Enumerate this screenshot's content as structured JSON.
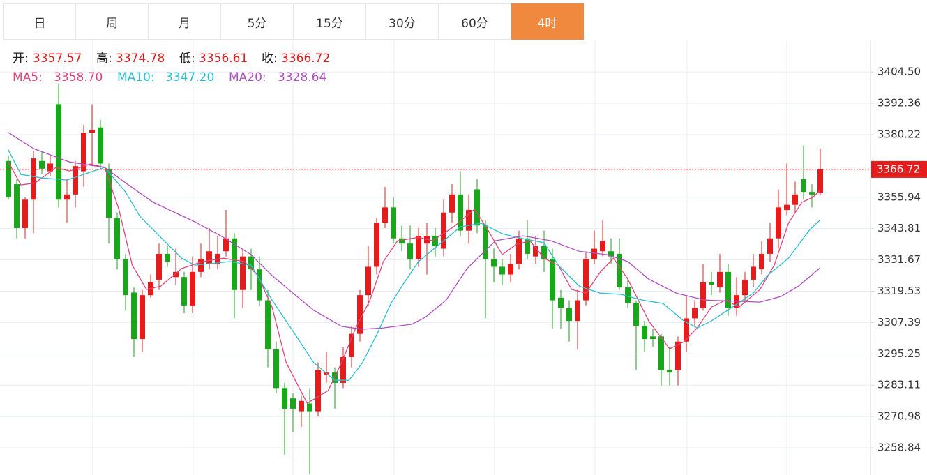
{
  "tabs": [
    "日",
    "周",
    "月",
    "5分",
    "15分",
    "30分",
    "60分",
    "4时"
  ],
  "active_tab": 7,
  "chart_data": {
    "type": "candlestick",
    "ohlc_labels": [
      "开:",
      "高:",
      "低:",
      "收:"
    ],
    "up_color": "#e41c1c",
    "down_color": "#1aa61a",
    "open": [
      3370,
      3361,
      3344,
      3355,
      3370,
      3366,
      3392,
      3355,
      3357,
      3366,
      3381,
      3383,
      3367,
      3348,
      3332,
      3319,
      3301,
      3318,
      3324,
      3334,
      3325,
      3325,
      3314,
      3327,
      3330,
      3330,
      3335,
      3340,
      3320,
      3333,
      3328,
      3316,
      3297,
      3282,
      3278,
      3273,
      3276,
      3273,
      3287,
      3288,
      3284,
      3294,
      3303,
      3318,
      3329,
      3346,
      3352,
      3340,
      3338,
      3332,
      3338,
      3341,
      3336,
      3350,
      3357,
      3343,
      3359,
      3345,
      3332,
      3329,
      3326,
      3330,
      3340,
      3333,
      3337,
      3332,
      3317,
      3313,
      3308,
      3316,
      3332,
      3335,
      3335,
      3334,
      3321,
      3315,
      3306,
      3302,
      3302,
      3289,
      3289,
      3300,
      3309,
      3313,
      3323,
      3321,
      3327,
      3313,
      3318,
      3324,
      3328,
      3334,
      3340,
      3351,
      3353,
      3363,
      3358,
      3357.57
    ],
    "high": [
      3372,
      3363,
      3356,
      3374,
      3374,
      3372,
      3400,
      3363,
      3370,
      3384,
      3392,
      3386,
      3369,
      3350,
      3334,
      3321,
      3320,
      3326,
      3338,
      3337,
      3336,
      3327,
      3333,
      3338,
      3344,
      3341,
      3351,
      3342,
      3336,
      3336,
      3333,
      3320,
      3300,
      3284,
      3280,
      3279,
      3282,
      3292,
      3296,
      3290,
      3298,
      3306,
      3320,
      3337,
      3348,
      3360,
      3356,
      3345,
      3345,
      3344,
      3346,
      3344,
      3355,
      3361,
      3366,
      3357,
      3363,
      3347,
      3336,
      3332,
      3334,
      3343,
      3347,
      3341,
      3343,
      3336,
      3320,
      3316,
      3320,
      3335,
      3343,
      3347,
      3340,
      3340,
      3325,
      3316,
      3308,
      3305,
      3303,
      3298,
      3302,
      3318,
      3316,
      3330,
      3327,
      3334,
      3330,
      3325,
      3327,
      3334,
      3339,
      3346,
      3359,
      3369,
      3362,
      3376,
      3361,
      3374.78
    ],
    "low": [
      3355,
      3340,
      3340,
      3342,
      3365,
      3364,
      3352,
      3346,
      3352,
      3360,
      3368,
      3367,
      3338,
      3328,
      3312,
      3294,
      3296,
      3317,
      3320,
      3329,
      3322,
      3311,
      3311,
      3325,
      3328,
      3328,
      3333,
      3309,
      3313,
      3320,
      3314,
      3290,
      3280,
      3256,
      3265,
      3267,
      3248.5,
      3271,
      3284,
      3274,
      3282,
      3290,
      3300,
      3314,
      3326,
      3344,
      3338,
      3335,
      3328,
      3329,
      3326,
      3333,
      3333,
      3346,
      3341,
      3338,
      3342,
      3309,
      3323,
      3322,
      3323,
      3328,
      3332,
      3330,
      3327,
      3305,
      3305,
      3300,
      3297,
      3314,
      3330,
      3333,
      3330,
      3320,
      3313,
      3289,
      3296,
      3298,
      3283,
      3283,
      3283,
      3296,
      3306,
      3312,
      3318,
      3319,
      3310,
      3310,
      3315,
      3321,
      3326,
      3331,
      3336,
      3349,
      3350,
      3355,
      3352,
      3356.61
    ],
    "close": [
      3356,
      3344,
      3355,
      3371,
      3367,
      3369,
      3355,
      3357,
      3368,
      3381,
      3382,
      3369,
      3348,
      3332,
      3318,
      3301,
      3318,
      3323,
      3334,
      3331,
      3327,
      3314,
      3327,
      3332,
      3335,
      3334,
      3340,
      3320,
      3333,
      3328,
      3316,
      3297,
      3282,
      3274,
      3274,
      3277,
      3273,
      3289,
      3288,
      3284,
      3294,
      3303,
      3318,
      3329,
      3346,
      3352,
      3340,
      3338,
      3332,
      3341,
      3341,
      3337,
      3350,
      3357,
      3343,
      3351,
      3345,
      3332,
      3329,
      3326,
      3330,
      3340,
      3334,
      3337,
      3332,
      3316,
      3313,
      3308,
      3316,
      3332,
      3336,
      3339,
      3333,
      3321,
      3315,
      3306,
      3301,
      3301,
      3289,
      3288,
      3300,
      3309,
      3313,
      3323,
      3322,
      3327,
      3313,
      3318,
      3324,
      3329,
      3334,
      3340,
      3352,
      3353,
      3357,
      3358,
      3357,
      3366.72
    ],
    "series": [
      {
        "name": "MA5:",
        "value_label": "3358.70",
        "color": "#e0457b",
        "x": [
          0,
          1.5,
          3.2,
          5.7,
          7.3,
          9.8,
          11.5,
          13.2,
          14.8,
          16.5,
          18.2,
          20.7,
          23.2,
          25.7,
          28.2,
          29.8,
          31.5,
          33.2,
          35.7,
          38.2,
          39.8,
          41.5,
          43.2,
          44.8,
          46.5,
          49,
          50.7,
          53.2,
          55.7,
          57.3,
          59,
          60.7,
          62.3,
          64,
          65.7,
          67.3,
          69,
          70.7,
          72.3,
          74,
          76.5,
          79,
          80.7,
          82.3,
          84,
          85.7,
          87.3,
          89.8,
          91.5,
          93.2,
          94.8,
          96.1,
          97
        ],
        "values": [
          3369.6,
          3360.7,
          3361.5,
          3367.5,
          3366.1,
          3368.8,
          3367.5,
          3351.3,
          3329.6,
          3320.2,
          3321.5,
          3328.3,
          3331.0,
          3332.3,
          3331.0,
          3325.6,
          3313.4,
          3291.8,
          3276.1,
          3281.0,
          3291.8,
          3305.3,
          3316.1,
          3331.0,
          3339.1,
          3340.4,
          3339.1,
          3344.5,
          3351.3,
          3343.2,
          3333.7,
          3337.7,
          3339.1,
          3332.3,
          3329.6,
          3320.2,
          3318.8,
          3326.9,
          3332.3,
          3324.2,
          3308.0,
          3297.2,
          3299.9,
          3305.3,
          3313.4,
          3316.1,
          3313.4,
          3320.2,
          3329.6,
          3345.9,
          3354.0,
          3355.9,
          3358.7
        ]
      },
      {
        "name": "MA10:",
        "value_label": "3347.20",
        "color": "#2bbfd0",
        "x": [
          0,
          1.5,
          4,
          7,
          9,
          11.5,
          14,
          15.7,
          18.2,
          20.7,
          22.3,
          24,
          26.5,
          29,
          31.5,
          34,
          36.5,
          39,
          40.7,
          42.3,
          44,
          45.7,
          47.3,
          49,
          51.5,
          54,
          56.5,
          59,
          61.5,
          64,
          65.7,
          68.2,
          70.7,
          73.2,
          75.7,
          78.2,
          80.7,
          82.3,
          84,
          86.5,
          89,
          90.7,
          93.2,
          95.7,
          97
        ],
        "values": [
          3374.2,
          3364.8,
          3363.4,
          3362.6,
          3364.8,
          3367.5,
          3358.0,
          3348.6,
          3340.4,
          3332.3,
          3329.6,
          3330.2,
          3331.0,
          3329.6,
          3316.1,
          3304.0,
          3291.8,
          3285.0,
          3285.0,
          3291.8,
          3302.6,
          3314.8,
          3322.9,
          3331.0,
          3337.7,
          3344.5,
          3345.9,
          3341.8,
          3339.9,
          3338.3,
          3329.6,
          3321.5,
          3318.8,
          3318.3,
          3316.1,
          3314.8,
          3308.0,
          3305.3,
          3308.0,
          3313.4,
          3318.8,
          3325.6,
          3332.3,
          3343.2,
          3347.2
        ]
      },
      {
        "name": "MA20:",
        "value_label": "3328.64",
        "color": "#b04fc0",
        "x": [
          0,
          3,
          7.3,
          11.5,
          14,
          17.3,
          22.3,
          25.7,
          29,
          31.5,
          34,
          36.5,
          39.8,
          42.3,
          44.8,
          48.2,
          49.8,
          52.3,
          54.8,
          58.2,
          61.5,
          64.8,
          68.2,
          71.5,
          74,
          76.5,
          79.8,
          83.2,
          87.3,
          89.8,
          92.3,
          94.4,
          97
        ],
        "values": [
          3381.0,
          3374.8,
          3369.6,
          3367.5,
          3361.5,
          3354.0,
          3346.4,
          3340.4,
          3333.7,
          3325.6,
          3318.8,
          3312.1,
          3305.9,
          3304.8,
          3305.3,
          3306.7,
          3309.4,
          3316.1,
          3328.3,
          3339.1,
          3341.0,
          3339.1,
          3335.0,
          3333.7,
          3331.0,
          3324.2,
          3318.8,
          3316.1,
          3315.6,
          3315.3,
          3317.5,
          3321.5,
          3328.6
        ]
      }
    ],
    "ylim": [
      3248.3,
      3416.7
    ],
    "yticks": [
      {
        "value": 3404.5,
        "label": "3404.50"
      },
      3392.36,
      3380.22,
      3355.94,
      3343.81,
      3331.67,
      3319.53,
      3307.39,
      3295.25,
      3283.11,
      3270.98,
      3258.84
    ],
    "grid": true,
    "last_price_color": "#e41c1c"
  }
}
